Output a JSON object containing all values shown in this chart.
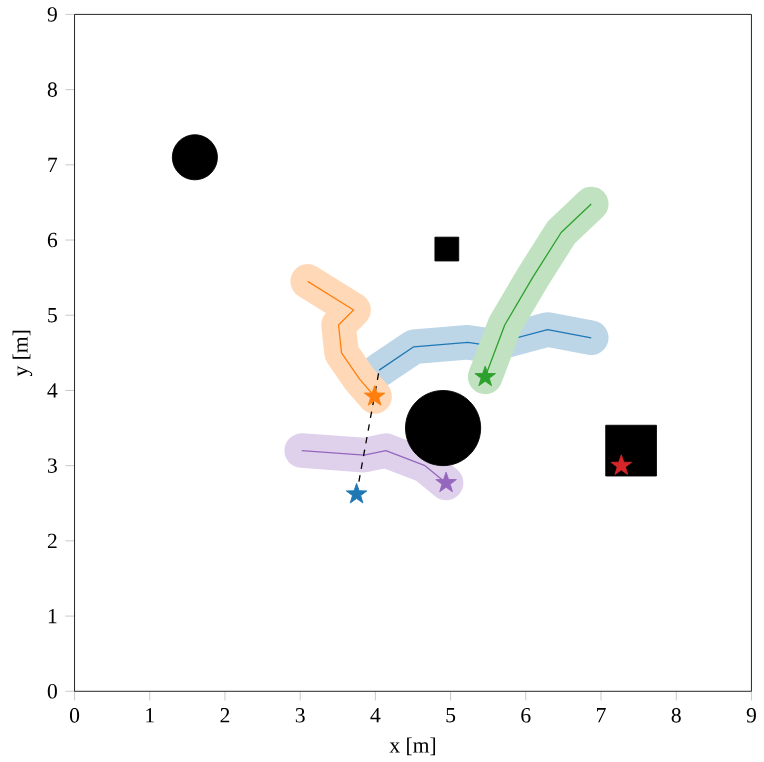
{
  "chart_data": {
    "type": "line",
    "xlabel": "x [m]",
    "ylabel": "y [m]",
    "xlim": [
      0,
      9
    ],
    "ylim": [
      0,
      9
    ],
    "xticks": [
      0,
      1,
      2,
      3,
      4,
      5,
      6,
      7,
      8,
      9
    ],
    "yticks": [
      0,
      1,
      2,
      3,
      4,
      5,
      6,
      7,
      8,
      9
    ],
    "grid": false,
    "marker": "none",
    "series": [
      {
        "color": "#1f77b4",
        "x": [
          4.05,
          4.51,
          5.23,
          5.5,
          6.29,
          6.87
        ],
        "values": [
          4.27,
          4.58,
          4.64,
          4.6,
          4.81,
          4.7
        ]
      },
      {
        "type": "line",
        "color": "#ff7f0e",
        "x": [
          3.1,
          3.71,
          3.51,
          3.55,
          3.79,
          3.99
        ],
        "values": [
          5.45,
          5.07,
          4.87,
          4.5,
          4.15,
          3.92
        ]
      },
      {
        "type": "line",
        "color": "#2ca02c",
        "x": [
          6.87,
          6.47,
          6.09,
          5.72,
          5.46
        ],
        "values": [
          6.48,
          6.1,
          5.5,
          4.87,
          4.18
        ]
      },
      {
        "type": "line",
        "color": "#9467bd",
        "x": [
          3.02,
          3.85,
          4.14,
          4.66,
          4.94
        ],
        "values": [
          3.2,
          3.14,
          3.2,
          3.0,
          2.77
        ]
      },
      {
        "type": "line",
        "color": "#000000",
        "line_style": "dashed",
        "x": [
          3.75,
          4.05
        ],
        "values": [
          2.62,
          4.27
        ]
      },
      {
        "type": "scatter",
        "marker": "star",
        "colors": [
          "#1f77b4",
          "#ff7f0e",
          "#2ca02c",
          "#d62728",
          "#9467bd"
        ],
        "x": [
          3.75,
          3.99,
          5.46,
          7.27,
          4.94
        ],
        "values": [
          2.62,
          3.92,
          4.18,
          3.0,
          2.77
        ]
      },
      {
        "type": "bubble",
        "marker": "circle",
        "color": "#000000",
        "x": [
          1.6,
          4.9
        ],
        "values": [
          7.1,
          3.5
        ],
        "sizes": [
          0.36,
          1
        ]
      },
      {
        "type": "bubble",
        "marker": "square",
        "color": "#000000",
        "x": [
          4.95,
          7.4
        ],
        "values": [
          5.88,
          3.2
        ],
        "sizes": [
          0.2,
          0.91
        ]
      }
    ]
  }
}
